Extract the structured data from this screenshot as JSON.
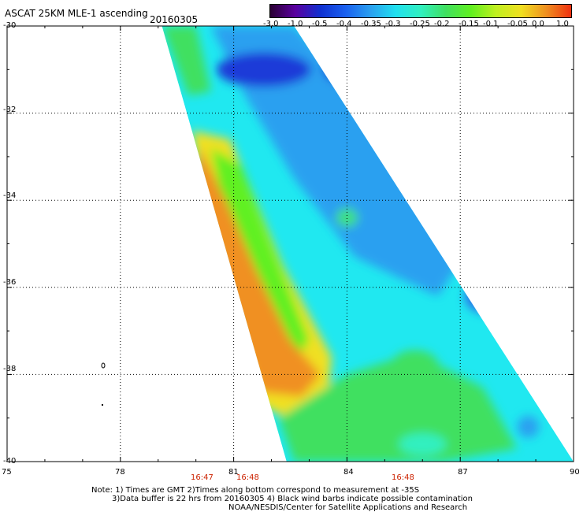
{
  "header": {
    "title": "ASCAT 25KM MLE-1 ascending",
    "date": "20160305"
  },
  "colorbar": {
    "labels": [
      "-3.0",
      "-1.0",
      "-0.5",
      "-0.4",
      "-0.35",
      "-0.3",
      "-0.25",
      "-0.2",
      "-0.15",
      "-0.1",
      "-0.05",
      "0.0",
      "1.0"
    ],
    "colors": [
      "#2a0033",
      "#5a00a0",
      "#1030d0",
      "#1a60f0",
      "#2aa0f0",
      "#20e0f0",
      "#30f0c0",
      "#40e060",
      "#60f020",
      "#c0f020",
      "#f0e020",
      "#f09020",
      "#f03010"
    ]
  },
  "map": {
    "lat_ticks": [
      "-30",
      "-32",
      "-34",
      "-36",
      "-38",
      "-40"
    ],
    "lon_ticks": [
      "75",
      "78",
      "81",
      "84",
      "87",
      "90"
    ],
    "lat_range": [
      -40,
      -30
    ],
    "lon_range": [
      75,
      90
    ],
    "grid": true,
    "times": [
      {
        "label": "16:47",
        "lon": 80.1
      },
      {
        "label": "16:48",
        "lon": 81.4
      },
      {
        "label": "16:48",
        "lon": 85.2
      }
    ],
    "swath_corners": [
      [
        79.1,
        -30
      ],
      [
        82.6,
        -30
      ],
      [
        90,
        -40
      ],
      [
        82.4,
        -40
      ]
    ],
    "color_regions": [
      {
        "name": "dark-blue-low",
        "value": -0.4,
        "color": "#1a3ad8"
      },
      {
        "name": "light-blue",
        "value": -0.3,
        "color": "#2aa0f0"
      },
      {
        "name": "cyan",
        "value": -0.25,
        "color": "#20e8f0"
      },
      {
        "name": "green",
        "value": -0.2,
        "color": "#40e060"
      },
      {
        "name": "yellow",
        "value": -0.05,
        "color": "#f0e020"
      },
      {
        "name": "orange-high",
        "value": 0.0,
        "color": "#f09020"
      }
    ]
  },
  "footer": {
    "note1": "Note: 1) Times are GMT 2)Times along bottom correspond to measurement at -35S",
    "note2": "3)Data buffer is 22 hrs from 20160305 4) Black wind barbs indicate possible contamination",
    "note3": "NOAA/NESDIS/Center for Satellite Applications and Research"
  }
}
